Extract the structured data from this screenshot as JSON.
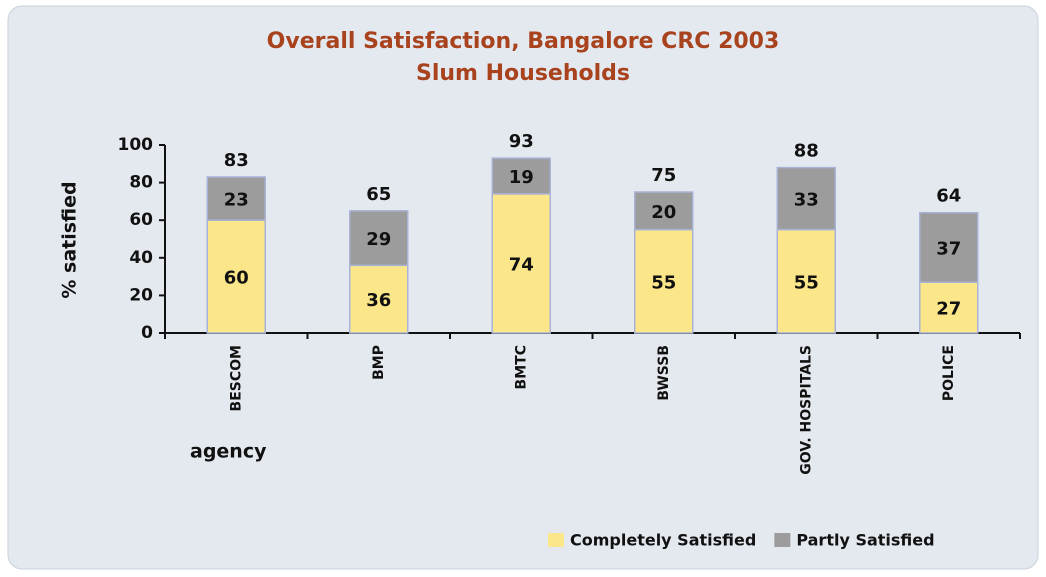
{
  "chart_data": {
    "type": "bar",
    "stacked": true,
    "title": "Overall Satisfaction, Bangalore CRC 2003",
    "subtitle": "Slum Households",
    "y_label": "% satisfied",
    "x_label": "agency",
    "categories": [
      "BESCOM",
      "BMP",
      "BMTC",
      "BWSSB",
      "GOV. HOSPITALS",
      "POLICE"
    ],
    "series": [
      {
        "name": "Completely Satisfied",
        "color": "#fbe689",
        "values": [
          60,
          36,
          74,
          55,
          55,
          27
        ]
      },
      {
        "name": "Partly Satisfied",
        "color": "#9c9c9c",
        "values": [
          23,
          29,
          19,
          20,
          33,
          37
        ]
      }
    ],
    "totals": [
      83,
      65,
      93,
      75,
      88,
      64
    ],
    "ylim": [
      0,
      100
    ],
    "yticks": [
      0,
      20,
      40,
      60,
      80,
      100
    ],
    "legend": "bottom-right"
  }
}
